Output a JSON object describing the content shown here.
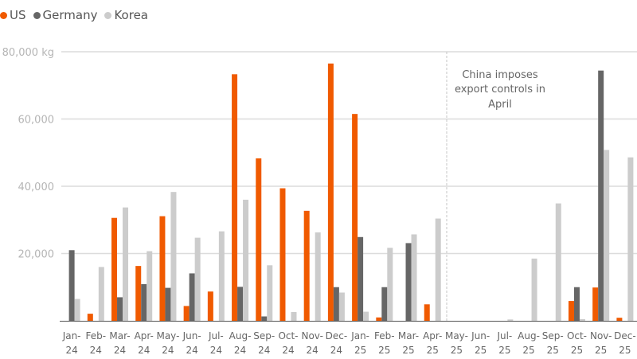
{
  "legend": [
    {
      "label": "US",
      "color": "#f05a00"
    },
    {
      "label": "Germany",
      "color": "#666666"
    },
    {
      "label": "Korea",
      "color": "#cccccc"
    }
  ],
  "annotation": {
    "lines": [
      "China imposes",
      "export controls in",
      "April"
    ]
  },
  "chart_data": {
    "type": "bar",
    "title": "",
    "xlabel": "",
    "ylabel": "kg",
    "ylim": [
      0,
      80000
    ],
    "yticks": [
      {
        "value": 80000,
        "label": "80,000 kg"
      },
      {
        "value": 60000,
        "label": "60,000"
      },
      {
        "value": 40000,
        "label": "40,000"
      },
      {
        "value": 20000,
        "label": "20,000"
      }
    ],
    "grid": true,
    "legend_position": "top-left",
    "categories": [
      [
        "Jan-",
        "24"
      ],
      [
        "Feb-",
        "24"
      ],
      [
        "Mar-",
        "24"
      ],
      [
        "Apr-",
        "24"
      ],
      [
        "May-",
        "24"
      ],
      [
        "Jun-",
        "24"
      ],
      [
        "Jul-",
        "24"
      ],
      [
        "Aug-",
        "24"
      ],
      [
        "Sep-",
        "24"
      ],
      [
        "Oct-",
        "24"
      ],
      [
        "Nov-",
        "24"
      ],
      [
        "Dec-",
        "24"
      ],
      [
        "Jan-",
        "25"
      ],
      [
        "Feb-",
        "25"
      ],
      [
        "Mar-",
        "25"
      ],
      [
        "Apr-",
        "25"
      ],
      [
        "May-",
        "25"
      ],
      [
        "Jun-",
        "25"
      ],
      [
        "Jul-",
        "25"
      ],
      [
        "Aug-",
        "25"
      ],
      [
        "Sep-",
        "25"
      ],
      [
        "Oct-",
        "25"
      ],
      [
        "Nov-",
        "25"
      ],
      [
        "Dec-",
        "25"
      ]
    ],
    "series": [
      {
        "name": "US",
        "color": "#f05a00",
        "values": [
          0,
          2100,
          30600,
          16300,
          31100,
          4400,
          8700,
          73300,
          48300,
          39400,
          32700,
          76500,
          61500,
          1000,
          0,
          4900,
          0,
          0,
          0,
          0,
          0,
          5900,
          9900,
          900
        ]
      },
      {
        "name": "Germany",
        "color": "#666666",
        "values": [
          21000,
          0,
          7000,
          10900,
          9800,
          14100,
          0,
          10100,
          1300,
          0,
          0,
          10000,
          24900,
          10000,
          23100,
          0,
          0,
          0,
          0,
          0,
          0,
          10000,
          74400,
          0
        ]
      },
      {
        "name": "Korea",
        "color": "#cccccc",
        "values": [
          6500,
          16000,
          33700,
          20700,
          38300,
          24700,
          26600,
          36000,
          16500,
          2600,
          26300,
          8400,
          2700,
          21700,
          25700,
          30400,
          0,
          0,
          400,
          18500,
          34900,
          500,
          50800,
          48600
        ]
      }
    ],
    "annotations": [
      {
        "type": "vline",
        "between": [
          "Apr-25",
          "May-25"
        ],
        "style": "dashed",
        "text": "China imposes export controls in April"
      }
    ]
  }
}
